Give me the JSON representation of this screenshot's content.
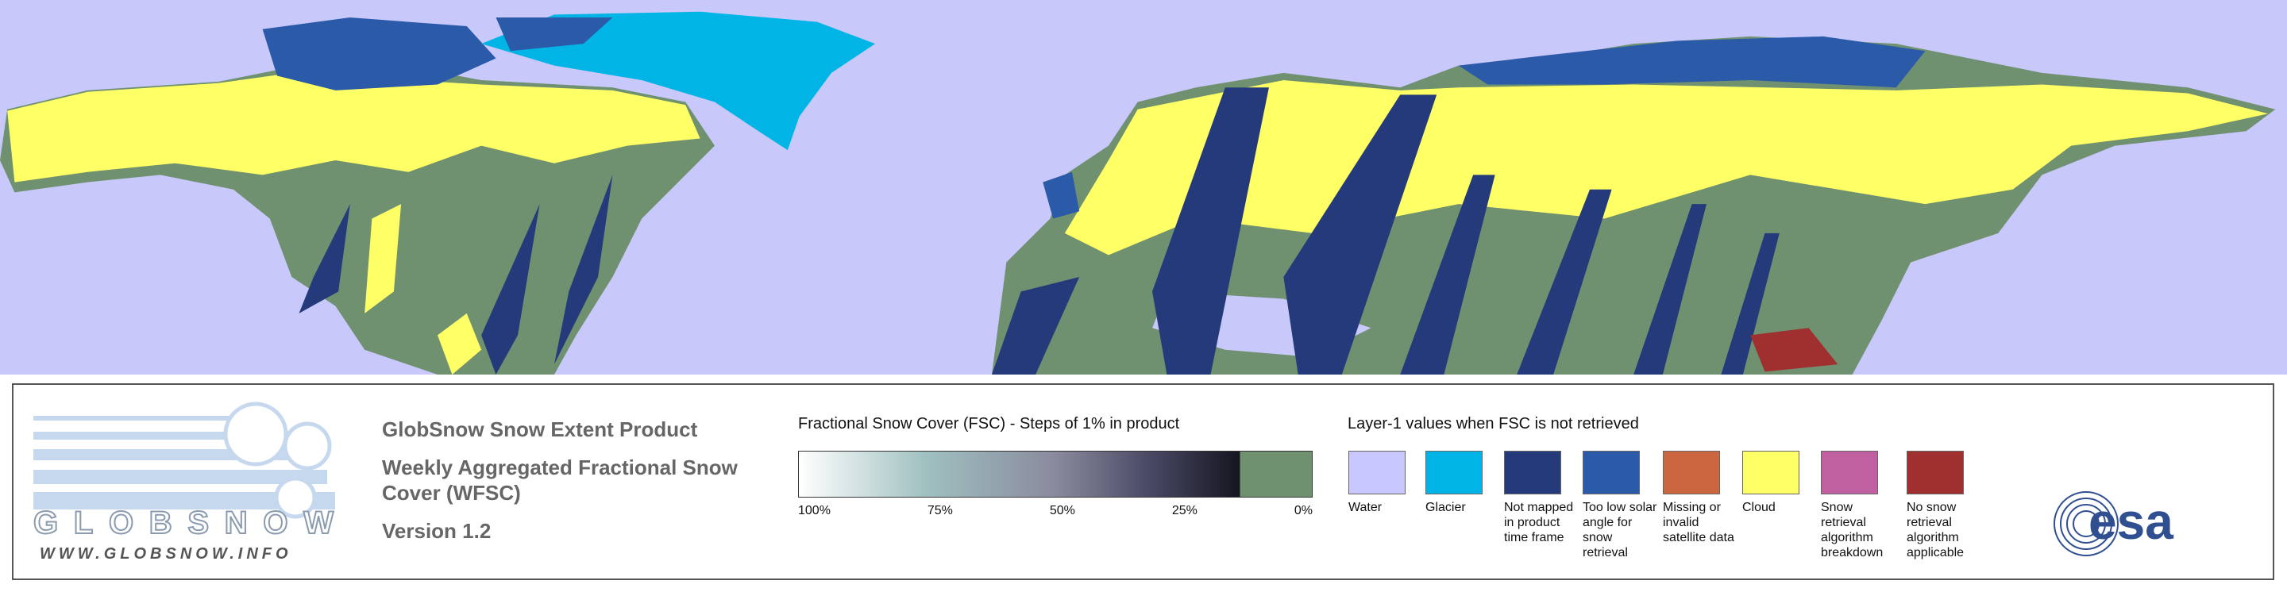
{
  "header": {
    "product": "GlobSnow Snow Extent Product",
    "subtitle": "Weekly Aggregated Fractional Snow Cover (WFSC)",
    "version": "Version 1.2"
  },
  "logo": {
    "name": "GLOBSNOW",
    "url": "WWW.GLOBSNOW.INFO",
    "agency": "esa"
  },
  "colorbar": {
    "title": "Fractional Snow Cover (FSC) - Steps of 1% in product",
    "ticks": [
      "100%",
      "75%",
      "50%",
      "25%",
      "0%"
    ]
  },
  "layer1": {
    "title": "Layer-1 values when FSC is not retrieved",
    "items": [
      {
        "label": "Water",
        "color": "#c8c8ff"
      },
      {
        "label": "Glacier",
        "color": "#00b4e6"
      },
      {
        "label": "Not mapped in product time frame",
        "color": "#243a7a"
      },
      {
        "label": "Too low solar angle for snow retrieval",
        "color": "#2a5aa8"
      },
      {
        "label": "Missing or invalid satellite data",
        "color": "#cc6640"
      },
      {
        "label": "Cloud",
        "color": "#ffff66"
      },
      {
        "label": "Snow retrieval algorithm breakdown",
        "color": "#c060a0"
      },
      {
        "label": "No snow retrieval algorithm applicable",
        "color": "#a03030"
      }
    ]
  }
}
